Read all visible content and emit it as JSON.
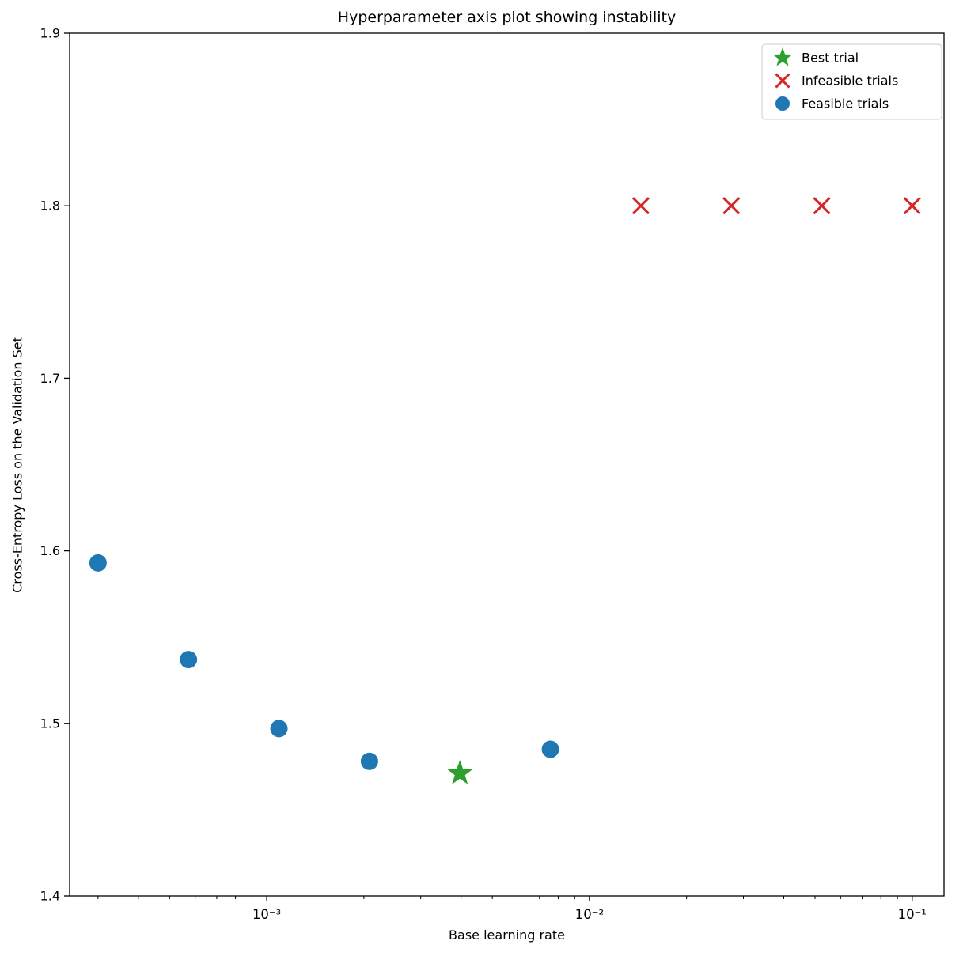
{
  "chart_data": {
    "type": "scatter",
    "title": "Hyperparameter axis plot showing instability",
    "xlabel": "Base learning rate",
    "ylabel": "Cross-Entropy Loss on the Validation Set",
    "x_scale": "log",
    "xlim": [
      0.000245,
      0.1255
    ],
    "ylim": [
      1.4,
      1.9
    ],
    "x_ticks": [
      0.001,
      0.01,
      0.1
    ],
    "x_tick_labels": [
      "10⁻³",
      "10⁻²",
      "10⁻¹"
    ],
    "y_ticks": [
      1.4,
      1.5,
      1.6,
      1.7,
      1.8,
      1.9
    ],
    "y_tick_labels": [
      "1.4",
      "1.5",
      "1.6",
      "1.7",
      "1.8",
      "1.9"
    ],
    "grid": false,
    "legend_position": "upper right",
    "series": [
      {
        "name": "Feasible trials",
        "marker": "circle",
        "color": "#1f77b4",
        "points": [
          [
            0.0003,
            1.593
          ],
          [
            0.000572,
            1.537
          ],
          [
            0.001091,
            1.497
          ],
          [
            0.002081,
            1.478
          ],
          [
            0.007568,
            1.485
          ]
        ]
      },
      {
        "name": "Best trial",
        "marker": "star",
        "color": "#2ca02c",
        "points": [
          [
            0.003968,
            1.471
          ]
        ]
      },
      {
        "name": "Infeasible trials",
        "marker": "x",
        "color": "#d62728",
        "points": [
          [
            0.014432,
            1.8
          ],
          [
            0.027523,
            1.8
          ],
          [
            0.052489,
            1.8
          ],
          [
            0.1,
            1.8
          ]
        ]
      }
    ],
    "legend": [
      {
        "label": "Best trial",
        "marker": "star",
        "color": "#2ca02c"
      },
      {
        "label": "Infeasible trials",
        "marker": "x",
        "color": "#d62728"
      },
      {
        "label": "Feasible trials",
        "marker": "circle",
        "color": "#1f77b4"
      }
    ]
  }
}
